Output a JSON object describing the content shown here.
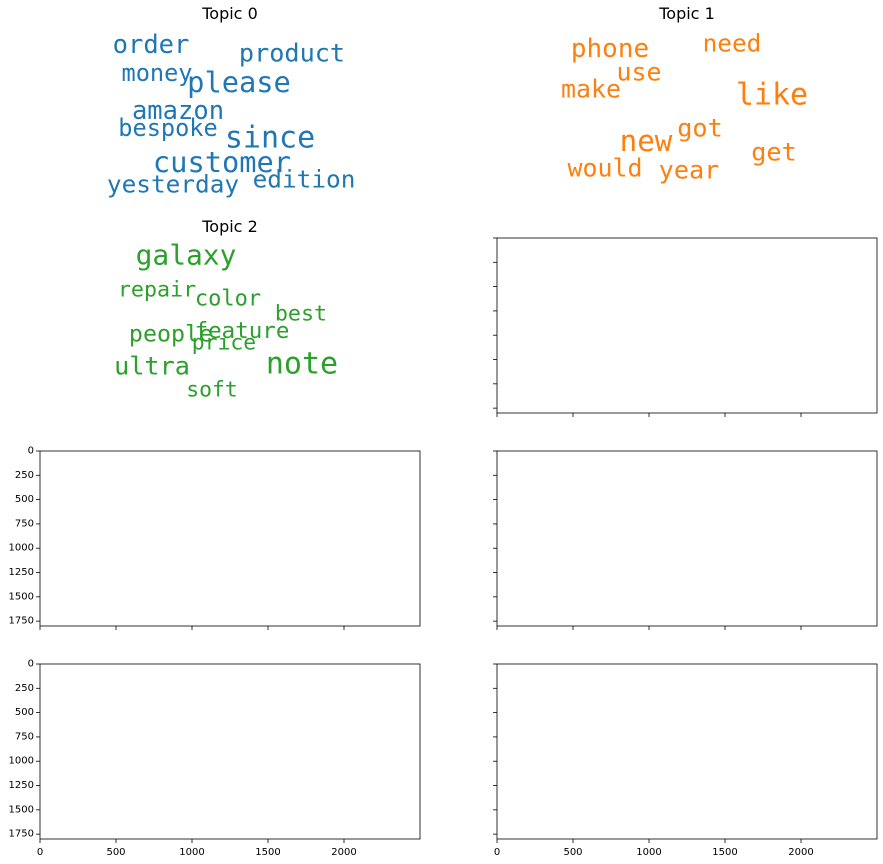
{
  "chart_data": [
    {
      "type": "wordcloud",
      "title": "Topic 0",
      "color": "#1f77b4",
      "words": [
        {
          "text": "order",
          "weight": 0.72
        },
        {
          "text": "product",
          "weight": 0.7
        },
        {
          "text": "money",
          "weight": 0.6
        },
        {
          "text": "please",
          "weight": 0.92
        },
        {
          "text": "amazon",
          "weight": 0.72
        },
        {
          "text": "bespoke",
          "weight": 0.6
        },
        {
          "text": "since",
          "weight": 1.0
        },
        {
          "text": "customer",
          "weight": 0.92
        },
        {
          "text": "edition",
          "weight": 0.65
        },
        {
          "text": "yesterday",
          "weight": 0.65
        }
      ]
    },
    {
      "type": "wordcloud",
      "title": "Topic 1",
      "color": "#ff7f0e",
      "words": [
        {
          "text": "phone",
          "weight": 0.75
        },
        {
          "text": "need",
          "weight": 0.65
        },
        {
          "text": "use",
          "weight": 0.68
        },
        {
          "text": "make",
          "weight": 0.68
        },
        {
          "text": "like",
          "weight": 1.0
        },
        {
          "text": "new",
          "weight": 0.95
        },
        {
          "text": "got",
          "weight": 0.7
        },
        {
          "text": "get",
          "weight": 0.7
        },
        {
          "text": "would",
          "weight": 0.68
        },
        {
          "text": "year",
          "weight": 0.7
        }
      ]
    },
    {
      "type": "wordcloud",
      "title": "Topic 2",
      "color": "#2ca02c",
      "words": [
        {
          "text": "galaxy",
          "weight": 0.87
        },
        {
          "text": "repair",
          "weight": 0.48
        },
        {
          "text": "color",
          "weight": 0.5
        },
        {
          "text": "best",
          "weight": 0.48
        },
        {
          "text": "feature",
          "weight": 0.53
        },
        {
          "text": "people",
          "weight": 0.58
        },
        {
          "text": "price",
          "weight": 0.46
        },
        {
          "text": "ultra",
          "weight": 0.7
        },
        {
          "text": "note",
          "weight": 1.0
        },
        {
          "text": "soft",
          "weight": 0.46
        }
      ]
    },
    {
      "type": "empty",
      "title": "",
      "xlim": [
        0,
        2500
      ],
      "ylim": [
        1800,
        0
      ],
      "xticks": [],
      "yticks": [],
      "xtick_labels": [],
      "ytick_labels": []
    },
    {
      "type": "empty",
      "title": "",
      "xlim": [
        0,
        2500
      ],
      "ylim": [
        1800,
        0
      ],
      "xticks": [
        0,
        500,
        1000,
        1500,
        2000
      ],
      "yticks": [
        0,
        250,
        500,
        750,
        1000,
        1250,
        1500,
        1750
      ],
      "xtick_labels": [],
      "ytick_labels": [
        "0",
        "250",
        "500",
        "750",
        "1000",
        "1250",
        "1500",
        "1750"
      ]
    },
    {
      "type": "empty",
      "title": "",
      "xlim": [
        0,
        2500
      ],
      "ylim": [
        1800,
        0
      ],
      "xticks": [
        0,
        500,
        1000,
        1500,
        2000
      ],
      "yticks": [
        0,
        250,
        500,
        750,
        1000,
        1250,
        1500,
        1750
      ],
      "xtick_labels": [],
      "ytick_labels": []
    },
    {
      "type": "empty",
      "title": "",
      "xlim": [
        0,
        2500
      ],
      "ylim": [
        1800,
        0
      ],
      "xticks": [
        0,
        500,
        1000,
        1500,
        2000
      ],
      "yticks": [
        0,
        250,
        500,
        750,
        1000,
        1250,
        1500,
        1750
      ],
      "xtick_labels": [
        "0",
        "500",
        "1000",
        "1500",
        "2000"
      ],
      "ytick_labels": [
        "0",
        "250",
        "500",
        "750",
        "1000",
        "1250",
        "1500",
        "1750"
      ]
    },
    {
      "type": "empty",
      "title": "",
      "xlim": [
        0,
        2500
      ],
      "ylim": [
        1800,
        0
      ],
      "xticks": [
        0,
        500,
        1000,
        1500,
        2000
      ],
      "yticks": [
        0,
        250,
        500,
        750,
        1000,
        1250,
        1500,
        1750
      ],
      "xtick_labels": [
        "0",
        "500",
        "1000",
        "1500",
        "2000"
      ],
      "ytick_labels": []
    }
  ]
}
